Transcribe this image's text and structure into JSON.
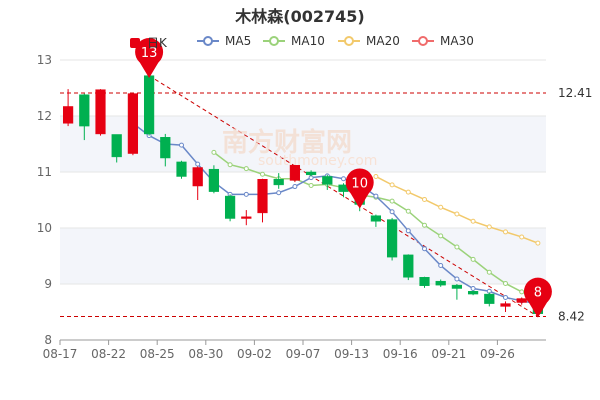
{
  "title": "木林森(002745)",
  "watermark": {
    "cn": "南方财富网",
    "en": "southmoney.com"
  },
  "legend": [
    {
      "label": "日K",
      "color": "#e60012",
      "kind": "candle"
    },
    {
      "label": "MA5",
      "color": "#6a88c8",
      "kind": "line"
    },
    {
      "label": "MA10",
      "color": "#9bd27a",
      "kind": "line"
    },
    {
      "label": "MA20",
      "color": "#f2c96b",
      "kind": "line"
    },
    {
      "label": "MA30",
      "color": "#f06b6b",
      "kind": "line"
    }
  ],
  "colors": {
    "up": "#e60012",
    "down": "#00b050",
    "refline": "#cc0000",
    "trend": "#cc0000",
    "grid": "#e6e6e6",
    "band": "#f3f5fa"
  },
  "chart_data": {
    "type": "candlestick",
    "title": "木林森(002745)",
    "ylim": [
      8,
      13
    ],
    "yticks": [
      8,
      9,
      10,
      11,
      12,
      13
    ],
    "x_tick_labels": [
      "08-17",
      "08-22",
      "08-25",
      "08-30",
      "09-02",
      "09-07",
      "09-13",
      "09-16",
      "09-21",
      "09-26"
    ],
    "x_tick_indices": [
      0,
      3,
      6,
      9,
      12,
      15,
      18,
      21,
      24,
      27
    ],
    "candles": [
      {
        "date": "08-17",
        "o": 11.87,
        "c": 12.17,
        "h": 12.48,
        "l": 11.82
      },
      {
        "date": "08-18",
        "o": 12.38,
        "c": 11.82,
        "h": 12.4,
        "l": 11.57
      },
      {
        "date": "08-19",
        "o": 11.68,
        "c": 12.47,
        "h": 12.48,
        "l": 11.65
      },
      {
        "date": "08-22",
        "o": 11.67,
        "c": 11.27,
        "h": 11.67,
        "l": 11.17
      },
      {
        "date": "08-23",
        "o": 11.33,
        "c": 12.4,
        "h": 12.4,
        "l": 11.3
      },
      {
        "date": "08-24",
        "o": 12.72,
        "c": 11.68,
        "h": 12.75,
        "l": 11.65
      },
      {
        "date": "08-25",
        "o": 11.62,
        "c": 11.25,
        "h": 11.68,
        "l": 11.1
      },
      {
        "date": "08-26",
        "o": 11.18,
        "c": 10.92,
        "h": 11.2,
        "l": 10.88
      },
      {
        "date": "08-29",
        "o": 10.75,
        "c": 11.08,
        "h": 11.1,
        "l": 10.5
      },
      {
        "date": "08-30",
        "o": 11.05,
        "c": 10.65,
        "h": 11.12,
        "l": 10.62
      },
      {
        "date": "08-31",
        "o": 10.57,
        "c": 10.17,
        "h": 10.6,
        "l": 10.12
      },
      {
        "date": "09-01",
        "o": 10.17,
        "c": 10.2,
        "h": 10.32,
        "l": 10.05
      },
      {
        "date": "09-02",
        "o": 10.27,
        "c": 10.87,
        "h": 10.88,
        "l": 10.1
      },
      {
        "date": "09-05",
        "o": 10.87,
        "c": 10.77,
        "h": 10.98,
        "l": 10.7
      },
      {
        "date": "09-06",
        "o": 10.85,
        "c": 11.12,
        "h": 11.13,
        "l": 10.82
      },
      {
        "date": "09-07",
        "o": 11.0,
        "c": 10.95,
        "h": 11.03,
        "l": 10.92
      },
      {
        "date": "09-08",
        "o": 10.92,
        "c": 10.78,
        "h": 10.95,
        "l": 10.68
      },
      {
        "date": "09-09",
        "o": 10.77,
        "c": 10.65,
        "h": 10.8,
        "l": 10.55
      },
      {
        "date": "09-13",
        "o": 10.62,
        "c": 10.42,
        "h": 10.65,
        "l": 10.3
      },
      {
        "date": "09-14",
        "o": 10.22,
        "c": 10.12,
        "h": 10.24,
        "l": 10.02
      },
      {
        "date": "09-15",
        "o": 10.15,
        "c": 9.48,
        "h": 10.18,
        "l": 9.42
      },
      {
        "date": "09-16",
        "o": 9.52,
        "c": 9.12,
        "h": 9.53,
        "l": 9.07
      },
      {
        "date": "09-19",
        "o": 9.12,
        "c": 8.97,
        "h": 9.13,
        "l": 8.93
      },
      {
        "date": "09-20",
        "o": 9.05,
        "c": 8.98,
        "h": 9.08,
        "l": 8.95
      },
      {
        "date": "09-21",
        "o": 8.98,
        "c": 8.92,
        "h": 9.0,
        "l": 8.72
      },
      {
        "date": "09-22",
        "o": 8.87,
        "c": 8.82,
        "h": 8.88,
        "l": 8.8
      },
      {
        "date": "09-23",
        "o": 8.82,
        "c": 8.65,
        "h": 8.85,
        "l": 8.6
      },
      {
        "date": "09-26",
        "o": 8.6,
        "c": 8.65,
        "h": 8.69,
        "l": 8.5
      },
      {
        "date": "09-27",
        "o": 8.67,
        "c": 8.74,
        "h": 8.76,
        "l": 8.63
      },
      {
        "date": "09-28",
        "o": 8.62,
        "c": 8.47,
        "h": 8.64,
        "l": 8.42
      }
    ],
    "ma5": [
      null,
      null,
      null,
      null,
      11.87,
      11.65,
      11.5,
      11.48,
      11.14,
      10.82,
      10.6,
      10.6,
      10.6,
      10.63,
      10.74,
      10.9,
      10.93,
      10.88,
      10.78,
      10.57,
      10.29,
      9.95,
      9.63,
      9.33,
      9.09,
      8.92,
      8.87,
      8.76,
      8.7,
      8.64
    ],
    "ma10": [
      null,
      null,
      null,
      null,
      null,
      null,
      null,
      null,
      null,
      11.35,
      11.13,
      11.06,
      10.96,
      10.88,
      10.88,
      10.76,
      10.78,
      10.72,
      10.59,
      10.55,
      10.48,
      10.3,
      10.05,
      9.86,
      9.66,
      9.44,
      9.21,
      9.01,
      8.86,
      8.72
    ],
    "ma20": [
      null,
      null,
      null,
      null,
      null,
      null,
      null,
      null,
      null,
      null,
      null,
      null,
      null,
      null,
      null,
      null,
      null,
      null,
      null,
      10.92,
      10.77,
      10.64,
      10.51,
      10.37,
      10.25,
      10.12,
      10.02,
      9.93,
      9.84,
      9.73
    ],
    "ma30": [],
    "ref_lines": [
      {
        "label": "12.41",
        "value": 12.41
      },
      {
        "label": "8.42",
        "value": 8.42
      }
    ],
    "trend_line": {
      "from": {
        "index": 5,
        "value": 12.72
      },
      "to": {
        "index": 29,
        "value": 8.42
      }
    },
    "markers": [
      {
        "label": "13",
        "index": 5,
        "value": 12.75
      },
      {
        "label": "10",
        "index": 18,
        "value": 10.42
      },
      {
        "label": "8",
        "index": 29,
        "value": 8.47
      }
    ]
  }
}
